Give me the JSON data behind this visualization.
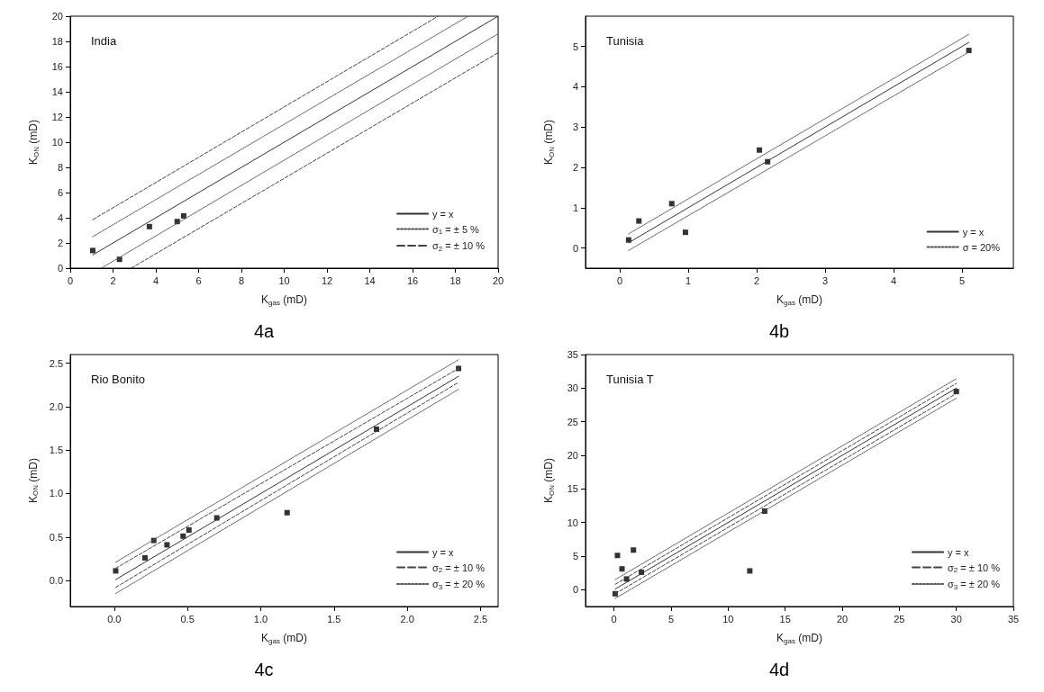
{
  "chart_data": [
    {
      "type": "scatter",
      "title": "India",
      "xlabel": "K$_{gas}$ (mD)",
      "ylabel": "K$_{ON}$ (mD)",
      "annotations": [
        "4a"
      ],
      "legend": "bottom right",
      "marker": "square",
      "xlim": [
        0,
        20
      ],
      "xticks": [
        0,
        2,
        4,
        6,
        8,
        10,
        12,
        14,
        16,
        18,
        20
      ],
      "ylim": [
        0,
        20
      ],
      "yticks": [
        0,
        2,
        4,
        6,
        8,
        10,
        12,
        14,
        16,
        18,
        20
      ],
      "series": [
        {
          "color": "#000000",
          "x": [
            1.05,
            2.3,
            3.7,
            5.0,
            5.3
          ],
          "values": [
            1.4,
            0.7,
            3.3,
            3.7,
            4.15
          ]
        },
        {
          "type": "line",
          "name": "y = x",
          "color": "#333333",
          "line_style": "solid",
          "marker": "none",
          "x": [
            1.05,
            20
          ],
          "values": [
            1.05,
            20
          ]
        },
        {
          "type": "line",
          "name": "σ$_{1}$ = ± 5 %",
          "color": "#555555",
          "line_style": "dotted",
          "marker": "none",
          "x": [
            1.05,
            18.6
          ],
          "values": [
            2.5,
            20
          ]
        },
        {
          "type": "line",
          "color": "#555555",
          "line_style": "dotted",
          "marker": "none",
          "x": [
            1.45,
            20
          ],
          "values": [
            0,
            18.6
          ]
        },
        {
          "type": "line",
          "name": "σ$_{2}$ = ± 10 %",
          "color": "#444444",
          "line_style": "dashed",
          "marker": "none",
          "x": [
            1.05,
            17.2
          ],
          "values": [
            3.85,
            20
          ]
        },
        {
          "type": "line",
          "color": "#444444",
          "line_style": "dashed",
          "marker": "none",
          "x": [
            2.85,
            20
          ],
          "values": [
            0,
            17.1
          ]
        }
      ]
    },
    {
      "type": "scatter",
      "title": "Tunisia",
      "xlabel": "K$_{gas}$ (mD)",
      "ylabel": "K$_{ON}$ (mD)",
      "annotations": [
        "4b"
      ],
      "legend": "bottom right",
      "marker": "square",
      "xlim": [
        -0.5,
        5.75
      ],
      "xticks": [
        0,
        1,
        2,
        3,
        4,
        5
      ],
      "ylim": [
        -0.5,
        5.75
      ],
      "yticks": [
        0,
        1,
        2,
        3,
        4,
        5
      ],
      "series": [
        {
          "color": "#000000",
          "x": [
            0.13,
            0.28,
            0.76,
            0.96,
            2.04,
            2.16,
            5.1
          ],
          "values": [
            0.2,
            0.67,
            1.1,
            0.39,
            2.43,
            2.14,
            4.9
          ]
        },
        {
          "type": "line",
          "name": "y = x",
          "color": "#333333",
          "line_style": "solid",
          "marker": "none",
          "x": [
            0.13,
            5.1
          ],
          "values": [
            0.13,
            5.1
          ]
        },
        {
          "type": "line",
          "name": "σ = 20%",
          "color": "#555555",
          "line_style": "dotted",
          "marker": "none",
          "x": [
            0.13,
            5.1
          ],
          "values": [
            0.35,
            5.3
          ]
        },
        {
          "type": "line",
          "color": "#555555",
          "line_style": "dotted",
          "marker": "none",
          "x": [
            0.13,
            5.1
          ],
          "values": [
            -0.06,
            4.86
          ]
        }
      ]
    },
    {
      "type": "scatter",
      "title": "Rio Bonito",
      "xlabel": "K$_{gas}$ (mD)",
      "ylabel": "K$_{ON}$ (mD)",
      "annotations": [
        "4c"
      ],
      "legend": "bottom right",
      "marker": "square",
      "xlim": [
        -0.3,
        2.62
      ],
      "xticks": [
        {
          "value": 0,
          "label": "0.0"
        },
        0.5,
        {
          "value": 1,
          "label": "1.0"
        },
        1.5,
        {
          "value": 2,
          "label": "2.0"
        },
        2.5
      ],
      "ylim": [
        -0.3,
        2.6
      ],
      "yticks": [
        {
          "value": 0,
          "label": "0.0"
        },
        0.5,
        {
          "value": 1,
          "label": "1.0"
        },
        1.5,
        {
          "value": 2,
          "label": "2.0"
        },
        2.5
      ],
      "series": [
        {
          "color": "#000000",
          "x": [
            0.01,
            0.21,
            0.27,
            0.36,
            0.47,
            0.51,
            0.7,
            1.18,
            1.79,
            2.35
          ],
          "values": [
            0.11,
            0.26,
            0.46,
            0.41,
            0.51,
            0.58,
            0.72,
            0.78,
            1.74,
            2.44
          ]
        },
        {
          "type": "line",
          "name": "y = x",
          "color": "#333333",
          "line_style": "solid",
          "marker": "none",
          "x": [
            0.01,
            2.35
          ],
          "values": [
            0.01,
            2.35
          ]
        },
        {
          "type": "line",
          "name": "σ$_{2}$ = ± 10 %",
          "color": "#444444",
          "line_style": "dashed",
          "marker": "none",
          "x": [
            0.01,
            2.35
          ],
          "values": [
            0.14,
            2.44
          ]
        },
        {
          "type": "line",
          "color": "#444444",
          "line_style": "dashed",
          "marker": "none",
          "x": [
            0.01,
            2.35
          ],
          "values": [
            -0.08,
            2.28
          ]
        },
        {
          "type": "line",
          "name": "σ$_{3}$ = ± 20 %",
          "color": "#555555",
          "line_style": "dotted",
          "marker": "none",
          "x": [
            0.01,
            2.35
          ],
          "values": [
            0.21,
            2.54
          ]
        },
        {
          "type": "line",
          "color": "#555555",
          "line_style": "dotted",
          "marker": "none",
          "x": [
            0.01,
            2.35
          ],
          "values": [
            -0.15,
            2.2
          ]
        }
      ]
    },
    {
      "type": "scatter",
      "title": "Tunisia T",
      "xlabel": "K$_{gas}$ (mD)",
      "ylabel": "K$_{ON}$ (mD)",
      "annotations": [
        "4d"
      ],
      "legend": "bottom right",
      "marker": "square",
      "xlim": [
        -2.5,
        35
      ],
      "xticks": [
        0,
        5,
        10,
        15,
        20,
        25,
        30,
        35
      ],
      "ylim": [
        -2.5,
        35
      ],
      "yticks": [
        0,
        5,
        10,
        15,
        20,
        25,
        30,
        35
      ],
      "series": [
        {
          "color": "#000000",
          "x": [
            0.1,
            0.3,
            0.7,
            1.1,
            1.7,
            2.4,
            11.9,
            13.2,
            30
          ],
          "values": [
            -0.6,
            5.1,
            3.1,
            1.6,
            5.9,
            2.6,
            2.8,
            11.7,
            29.5
          ]
        },
        {
          "type": "line",
          "name": "y = x",
          "color": "#333333",
          "line_style": "solid",
          "marker": "none",
          "x": [
            0.1,
            30
          ],
          "values": [
            0.1,
            30
          ]
        },
        {
          "type": "line",
          "name": "σ$_{2}$ = ± 10 %",
          "color": "#444444",
          "line_style": "dashed",
          "marker": "none",
          "x": [
            0.1,
            30
          ],
          "values": [
            0.8,
            30.7
          ]
        },
        {
          "type": "line",
          "color": "#444444",
          "line_style": "dashed",
          "marker": "none",
          "x": [
            0.1,
            30
          ],
          "values": [
            -0.6,
            29.2
          ]
        },
        {
          "type": "line",
          "name": "σ$_{3}$ = ± 20 %",
          "color": "#555555",
          "line_style": "dotted",
          "marker": "none",
          "x": [
            0.1,
            30
          ],
          "values": [
            1.5,
            31.4
          ]
        },
        {
          "type": "line",
          "color": "#555555",
          "line_style": "dotted",
          "marker": "none",
          "x": [
            0.1,
            30
          ],
          "values": [
            -1.3,
            28.5
          ]
        }
      ]
    }
  ]
}
